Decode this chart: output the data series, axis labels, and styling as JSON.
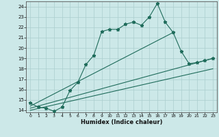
{
  "xlabel": "Humidex (Indice chaleur)",
  "background_color": "#cce8e8",
  "grid_color": "#aacece",
  "line_color": "#1e6b5a",
  "xlim": [
    -0.5,
    23.5
  ],
  "ylim": [
    13.8,
    24.5
  ],
  "x_ticks": [
    0,
    1,
    2,
    3,
    4,
    5,
    6,
    7,
    8,
    9,
    10,
    11,
    12,
    13,
    14,
    15,
    16,
    17,
    18,
    19,
    20,
    21,
    22,
    23
  ],
  "y_ticks": [
    14,
    15,
    16,
    17,
    18,
    19,
    20,
    21,
    22,
    23,
    24
  ],
  "series1_x": [
    0,
    1,
    2,
    3,
    4,
    5,
    6,
    7,
    8,
    9,
    10,
    11,
    12,
    13,
    14,
    15,
    16,
    17,
    18,
    19,
    20,
    21,
    22,
    23
  ],
  "series1_y": [
    14.7,
    14.3,
    14.2,
    13.9,
    14.3,
    15.9,
    16.7,
    18.4,
    19.3,
    21.6,
    21.8,
    21.8,
    22.3,
    22.5,
    22.2,
    23.0,
    24.3,
    22.5,
    21.5,
    19.7,
    18.5,
    18.6,
    18.8,
    19.0
  ],
  "series2_x": [
    0,
    18
  ],
  "series2_y": [
    14.4,
    21.5
  ],
  "series3_x": [
    0,
    23
  ],
  "series3_y": [
    14.2,
    19.0
  ],
  "series4_x": [
    0,
    23
  ],
  "series4_y": [
    14.0,
    18.0
  ]
}
